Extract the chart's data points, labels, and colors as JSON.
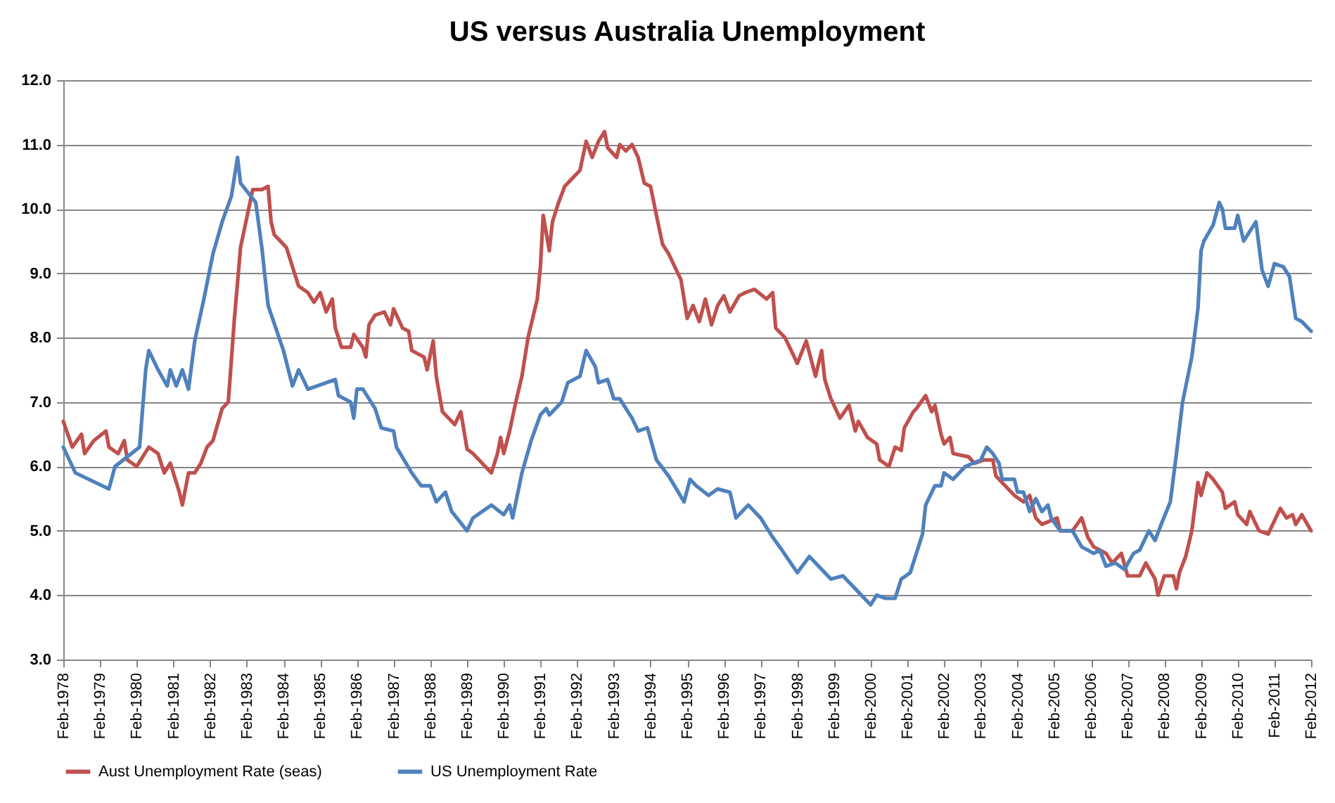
{
  "chart_data": {
    "type": "line",
    "title": "US versus Australia Unemployment",
    "xlim": [
      "1978-02",
      "2012-02"
    ],
    "xticks": [
      {
        "value": "1978-02",
        "label": "Feb-1978"
      },
      {
        "value": "1979-02",
        "label": "Feb-1979"
      },
      {
        "value": "1980-02",
        "label": "Feb-1980"
      },
      {
        "value": "1981-02",
        "label": "Feb-1981"
      },
      {
        "value": "1982-02",
        "label": "Feb-1982"
      },
      {
        "value": "1983-02",
        "label": "Feb-1983"
      },
      {
        "value": "1984-02",
        "label": "Feb-1984"
      },
      {
        "value": "1985-02",
        "label": "Feb-1985"
      },
      {
        "value": "1986-02",
        "label": "Feb-1986"
      },
      {
        "value": "1987-02",
        "label": "Feb-1987"
      },
      {
        "value": "1988-02",
        "label": "Feb-1988"
      },
      {
        "value": "1989-02",
        "label": "Feb-1989"
      },
      {
        "value": "1990-02",
        "label": "Feb-1990"
      },
      {
        "value": "1991-02",
        "label": "Feb-1991"
      },
      {
        "value": "1992-02",
        "label": "Feb-1992"
      },
      {
        "value": "1993-02",
        "label": "Feb-1993"
      },
      {
        "value": "1994-02",
        "label": "Feb-1994"
      },
      {
        "value": "1995-02",
        "label": "Feb-1995"
      },
      {
        "value": "1996-02",
        "label": "Feb-1996"
      },
      {
        "value": "1997-02",
        "label": "Feb-1997"
      },
      {
        "value": "1998-02",
        "label": "Feb-1998"
      },
      {
        "value": "1999-02",
        "label": "Feb-1999"
      },
      {
        "value": "2000-02",
        "label": "Feb-2000"
      },
      {
        "value": "2001-02",
        "label": "Feb-2001"
      },
      {
        "value": "2002-02",
        "label": "Feb-2002"
      },
      {
        "value": "2003-02",
        "label": "Feb-2003"
      },
      {
        "value": "2004-02",
        "label": "Feb-2004"
      },
      {
        "value": "2005-02",
        "label": "Feb-2005"
      },
      {
        "value": "2006-02",
        "label": "Feb-2006"
      },
      {
        "value": "2007-02",
        "label": "Feb-2007"
      },
      {
        "value": "2008-02",
        "label": "Feb-2008"
      },
      {
        "value": "2009-02",
        "label": "Feb-2009"
      },
      {
        "value": "2010-02",
        "label": "Feb-2010"
      },
      {
        "value": "2011-02",
        "label": "Feb-2011"
      },
      {
        "value": "2012-02",
        "label": "Feb-2012"
      }
    ],
    "ylim": [
      3,
      12
    ],
    "yticks": [
      {
        "value": 3,
        "label": "3.0"
      },
      {
        "value": 4,
        "label": "4.0"
      },
      {
        "value": 5,
        "label": "5.0"
      },
      {
        "value": 6,
        "label": "6.0"
      },
      {
        "value": 7,
        "label": "7.0"
      },
      {
        "value": 8,
        "label": "8.0"
      },
      {
        "value": 9,
        "label": "9.0"
      },
      {
        "value": 10,
        "label": "10.0"
      },
      {
        "value": 11,
        "label": "11.0"
      },
      {
        "value": 12,
        "label": "12.0"
      }
    ],
    "grid": "y",
    "legend": "bottom",
    "marker": "none",
    "line_style": "solid",
    "series": [
      {
        "name": "Aust Unemployment  Rate  (seas)",
        "color": "#c0504d",
        "x": [
          "1978-02",
          "1978-05",
          "1978-08",
          "1978-09",
          "1978-12",
          "1979-04",
          "1979-05",
          "1979-08",
          "1979-10",
          "1979-11",
          "1980-02",
          "1980-06",
          "1980-09",
          "1980-11",
          "1981-01",
          "1981-04",
          "1981-05",
          "1981-07",
          "1981-09",
          "1981-11",
          "1982-01",
          "1982-03",
          "1982-06",
          "1982-08",
          "1982-10",
          "1982-12",
          "1983-04",
          "1983-07",
          "1983-09",
          "1983-10",
          "1983-11",
          "1984-01",
          "1984-03",
          "1984-04",
          "1984-05",
          "1984-07",
          "1984-10",
          "1984-12",
          "1985-02",
          "1985-04",
          "1985-06",
          "1985-07",
          "1985-09",
          "1985-12",
          "1986-01",
          "1986-04",
          "1986-05",
          "1986-06",
          "1986-08",
          "1986-11",
          "1987-01",
          "1987-02",
          "1987-05",
          "1987-07",
          "1987-08",
          "1987-12",
          "1988-01",
          "1988-03",
          "1988-04",
          "1988-06",
          "1988-10",
          "1988-12",
          "1989-02",
          "1989-04",
          "1989-07",
          "1989-10",
          "1989-12",
          "1990-01",
          "1990-02",
          "1990-04",
          "1990-06",
          "1990-08",
          "1990-10",
          "1991-01",
          "1991-02",
          "1991-03",
          "1991-05",
          "1991-06",
          "1991-08",
          "1991-10",
          "1991-12",
          "1992-03",
          "1992-05",
          "1992-07",
          "1992-09",
          "1992-11",
          "1992-12",
          "1993-03",
          "1993-04",
          "1993-06",
          "1993-08",
          "1993-10",
          "1993-12",
          "1994-02",
          "1994-04",
          "1994-06",
          "1994-08",
          "1994-12",
          "1995-02",
          "1995-04",
          "1995-06",
          "1995-08",
          "1995-10",
          "1995-12",
          "1996-02",
          "1996-04",
          "1996-07",
          "1996-09",
          "1996-12",
          "1997-04",
          "1997-06",
          "1997-07",
          "1997-10",
          "1998-02",
          "1998-05",
          "1998-08",
          "1998-10",
          "1998-11",
          "1999-01",
          "1999-04",
          "1999-07",
          "1999-09",
          "1999-10",
          "2000-01",
          "2000-04",
          "2000-05",
          "2000-08",
          "2000-10",
          "2000-12",
          "2001-01",
          "2001-04",
          "2001-05",
          "2001-08",
          "2001-10",
          "2001-11",
          "2002-01",
          "2002-02",
          "2002-04",
          "2002-05",
          "2002-10",
          "2002-12",
          "2003-03",
          "2003-06",
          "2003-07",
          "2003-10",
          "2004-01",
          "2004-04",
          "2004-06",
          "2004-08",
          "2004-10",
          "2005-03",
          "2005-04",
          "2005-08",
          "2005-11",
          "2006-01",
          "2006-03",
          "2006-07",
          "2006-09",
          "2006-12",
          "2007-02",
          "2007-06",
          "2007-08",
          "2007-11",
          "2007-12",
          "2008-02",
          "2008-05",
          "2008-06",
          "2008-07",
          "2008-09",
          "2008-11",
          "2009-01",
          "2009-02",
          "2009-04",
          "2009-06",
          "2009-09",
          "2009-10",
          "2010-01",
          "2010-02",
          "2010-05",
          "2010-06",
          "2010-09",
          "2010-12",
          "2011-04",
          "2011-06",
          "2011-08",
          "2011-09",
          "2011-11",
          "2012-02"
        ],
        "values": [
          6.7,
          6.3,
          6.5,
          6.2,
          6.4,
          6.55,
          6.3,
          6.2,
          6.4,
          6.1,
          6.0,
          6.3,
          6.2,
          5.9,
          6.05,
          5.6,
          5.4,
          5.9,
          5.9,
          6.05,
          6.3,
          6.4,
          6.9,
          7.0,
          8.3,
          9.4,
          10.3,
          10.3,
          10.35,
          9.8,
          9.6,
          9.5,
          9.4,
          9.25,
          9.1,
          8.8,
          8.7,
          8.55,
          8.7,
          8.4,
          8.6,
          8.15,
          7.85,
          7.85,
          8.05,
          7.85,
          7.7,
          8.2,
          8.35,
          8.4,
          8.2,
          8.45,
          8.15,
          8.1,
          7.8,
          7.7,
          7.5,
          7.95,
          7.4,
          6.85,
          6.65,
          6.85,
          6.27,
          6.2,
          6.05,
          5.9,
          6.2,
          6.45,
          6.2,
          6.55,
          7.0,
          7.4,
          8.0,
          8.6,
          9.1,
          9.9,
          9.35,
          9.8,
          10.1,
          10.35,
          10.45,
          10.6,
          11.05,
          10.8,
          11.05,
          11.2,
          10.95,
          10.8,
          11.0,
          10.9,
          11.0,
          10.8,
          10.4,
          10.35,
          9.9,
          9.45,
          9.3,
          8.9,
          8.3,
          8.5,
          8.25,
          8.6,
          8.2,
          8.5,
          8.65,
          8.4,
          8.65,
          8.7,
          8.75,
          8.6,
          8.7,
          8.15,
          8.0,
          7.6,
          7.95,
          7.4,
          7.8,
          7.35,
          7.05,
          6.75,
          6.95,
          6.55,
          6.7,
          6.45,
          6.35,
          6.1,
          6.0,
          6.3,
          6.25,
          6.6,
          6.85,
          6.9,
          7.1,
          6.85,
          6.95,
          6.5,
          6.35,
          6.45,
          6.2,
          6.15,
          6.05,
          6.1,
          6.1,
          5.85,
          5.7,
          5.55,
          5.45,
          5.55,
          5.2,
          5.1,
          5.2,
          5.0,
          5.0,
          5.2,
          4.9,
          4.75,
          4.65,
          4.5,
          4.65,
          4.3,
          4.3,
          4.5,
          4.25,
          4.0,
          4.3,
          4.3,
          4.1,
          4.35,
          4.6,
          5.0,
          5.75,
          5.55,
          5.9,
          5.8,
          5.6,
          5.35,
          5.45,
          5.25,
          5.1,
          5.3,
          5.0,
          4.95,
          5.35,
          5.2,
          5.25,
          5.1,
          5.25,
          5.0
        ]
      },
      {
        "name": "US Unemployment Rate",
        "color": "#4f81bd",
        "x": [
          "1978-02",
          "1978-06",
          "1979-05",
          "1979-07",
          "1980-03",
          "1980-05",
          "1980-06",
          "1980-09",
          "1980-12",
          "1981-01",
          "1981-03",
          "1981-05",
          "1981-07",
          "1981-09",
          "1981-12",
          "1982-03",
          "1982-06",
          "1982-09",
          "1982-11",
          "1982-12",
          "1983-05",
          "1983-07",
          "1983-09",
          "1984-02",
          "1984-05",
          "1984-07",
          "1984-10",
          "1985-07",
          "1985-08",
          "1985-12",
          "1986-01",
          "1986-02",
          "1986-04",
          "1986-08",
          "1986-10",
          "1987-02",
          "1987-03",
          "1987-08",
          "1987-11",
          "1988-02",
          "1988-04",
          "1988-07",
          "1988-09",
          "1989-02",
          "1989-04",
          "1989-10",
          "1990-02",
          "1990-04",
          "1990-05",
          "1990-08",
          "1990-11",
          "1991-02",
          "1991-04",
          "1991-05",
          "1991-09",
          "1991-11",
          "1992-03",
          "1992-05",
          "1992-08",
          "1992-09",
          "1992-12",
          "1993-02",
          "1993-04",
          "1993-08",
          "1993-10",
          "1994-01",
          "1994-04",
          "1994-08",
          "1995-01",
          "1995-03",
          "1995-05",
          "1995-09",
          "1995-12",
          "1996-04",
          "1996-06",
          "1996-10",
          "1997-02",
          "1997-06",
          "1997-09",
          "1998-02",
          "1998-06",
          "1998-11",
          "1999-01",
          "1999-05",
          "1999-10",
          "2000-02",
          "2000-04",
          "2000-07",
          "2000-10",
          "2000-12",
          "2001-03",
          "2001-07",
          "2001-08",
          "2001-11",
          "2002-01",
          "2002-02",
          "2002-05",
          "2002-09",
          "2003-02",
          "2003-04",
          "2003-06",
          "2003-08",
          "2003-09",
          "2004-01",
          "2004-02",
          "2004-04",
          "2004-06",
          "2004-08",
          "2004-10",
          "2004-12",
          "2005-01",
          "2005-04",
          "2005-08",
          "2005-11",
          "2006-03",
          "2006-05",
          "2006-07",
          "2006-10",
          "2007-01",
          "2007-04",
          "2007-06",
          "2007-09",
          "2007-11",
          "2008-01",
          "2008-04",
          "2008-06",
          "2008-08",
          "2008-11",
          "2009-01",
          "2009-02",
          "2009-03",
          "2009-06",
          "2009-08",
          "2009-09",
          "2009-10",
          "2010-01",
          "2010-02",
          "2010-04",
          "2010-06",
          "2010-08",
          "2010-10",
          "2010-12",
          "2011-02",
          "2011-05",
          "2011-07",
          "2011-09",
          "2011-11",
          "2012-02"
        ],
        "values": [
          6.3,
          5.9,
          5.65,
          6.0,
          6.3,
          7.5,
          7.8,
          7.5,
          7.25,
          7.5,
          7.25,
          7.5,
          7.2,
          7.95,
          8.6,
          9.3,
          9.8,
          10.2,
          10.8,
          10.4,
          10.1,
          9.4,
          8.5,
          7.8,
          7.25,
          7.5,
          7.2,
          7.35,
          7.1,
          7.0,
          6.75,
          7.2,
          7.2,
          6.9,
          6.6,
          6.55,
          6.3,
          5.9,
          5.7,
          5.7,
          5.45,
          5.6,
          5.3,
          5.0,
          5.2,
          5.4,
          5.25,
          5.4,
          5.2,
          5.9,
          6.4,
          6.8,
          6.9,
          6.8,
          7.0,
          7.3,
          7.4,
          7.8,
          7.55,
          7.3,
          7.35,
          7.05,
          7.05,
          6.75,
          6.55,
          6.6,
          6.1,
          5.85,
          5.45,
          5.8,
          5.7,
          5.55,
          5.65,
          5.6,
          5.2,
          5.4,
          5.2,
          4.9,
          4.7,
          4.35,
          4.6,
          4.35,
          4.25,
          4.3,
          4.05,
          3.85,
          4.0,
          3.95,
          3.95,
          4.25,
          4.35,
          4.95,
          5.4,
          5.7,
          5.7,
          5.9,
          5.8,
          6.0,
          6.1,
          6.3,
          6.2,
          6.05,
          5.8,
          5.8,
          5.6,
          5.6,
          5.3,
          5.5,
          5.3,
          5.4,
          5.2,
          5.0,
          5.0,
          4.75,
          4.65,
          4.7,
          4.45,
          4.5,
          4.4,
          4.65,
          4.7,
          5.0,
          4.85,
          5.1,
          5.45,
          6.2,
          7.0,
          7.7,
          8.45,
          9.35,
          9.5,
          9.75,
          10.1,
          10.0,
          9.7,
          9.7,
          9.9,
          9.5,
          9.65,
          9.8,
          9.05,
          8.8,
          9.15,
          9.1,
          8.95,
          8.3,
          8.25,
          8.1
        ]
      }
    ]
  }
}
